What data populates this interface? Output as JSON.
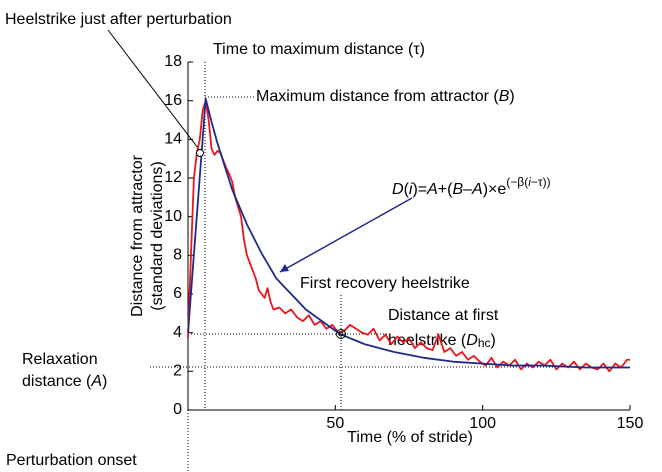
{
  "chart_data": {
    "type": "line",
    "x_label": "Time (% of stride)",
    "y_label": [
      "Distance from attractor",
      "(standard deviations)"
    ],
    "xlim": [
      0,
      150
    ],
    "ylim": [
      0,
      18
    ],
    "xticks": [
      50,
      100,
      150
    ],
    "yticks": [
      0,
      2,
      4,
      6,
      8,
      10,
      12,
      14,
      16,
      18
    ],
    "series": [
      {
        "color": "#e8161b",
        "x": [
          0,
          1,
          2,
          3,
          4,
          5,
          6,
          7,
          8,
          9,
          10,
          11,
          12,
          13,
          14,
          15,
          16,
          17,
          18,
          19,
          20,
          21,
          22,
          23,
          24,
          25,
          26,
          27,
          28,
          29,
          31,
          33,
          35,
          37,
          39,
          41,
          43,
          45,
          47,
          49,
          51,
          53,
          55,
          57,
          59,
          61,
          63,
          65,
          67,
          69,
          71,
          73,
          75,
          77,
          79,
          81,
          83,
          85,
          87,
          89,
          91,
          93,
          95,
          97,
          99,
          101,
          103,
          105,
          107,
          109,
          111,
          113,
          115,
          117,
          119,
          121,
          123,
          125,
          127,
          129,
          131,
          133,
          135,
          137,
          139,
          141,
          143,
          145,
          147,
          149,
          150
        ],
        "values": [
          3.7,
          8,
          12,
          13.3,
          14,
          15.5,
          16,
          15,
          13.5,
          13.2,
          13.4,
          13.3,
          12.9,
          12.5,
          12.2,
          11.8,
          11,
          10.5,
          10,
          8.8,
          8,
          7.6,
          7.2,
          6.8,
          6.2,
          6.0,
          5.8,
          6.3,
          5.6,
          5.2,
          5.3,
          5.0,
          5.2,
          4.8,
          4.6,
          4.9,
          4.4,
          4.6,
          4.2,
          4.4,
          4.0,
          4.1,
          4.4,
          4.2,
          4.0,
          3.9,
          4.2,
          3.6,
          3.9,
          3.4,
          3.8,
          3.5,
          3.7,
          3.2,
          3.5,
          3.2,
          3.1,
          3.9,
          3.0,
          3.2,
          2.8,
          3.0,
          2.6,
          2.8,
          2.5,
          2.3,
          2.7,
          2.2,
          2.5,
          2.3,
          2.6,
          2.1,
          2.4,
          2.2,
          2.5,
          2.3,
          2.6,
          2.1,
          2.4,
          2.2,
          2.5,
          2.1,
          2.4,
          2.2,
          2.1,
          2.4,
          2.0,
          2.4,
          2.2,
          2.6,
          2.6
        ]
      },
      {
        "color": "#1f2a8c",
        "x": [
          0,
          6,
          8,
          10,
          15,
          20,
          25,
          30,
          40,
          50,
          52,
          60,
          70,
          80,
          90,
          100,
          110,
          120,
          135,
          150
        ],
        "values": [
          4.0,
          16.1,
          14.9,
          13.8,
          11.4,
          9.6,
          8.1,
          6.8,
          5.2,
          4.1,
          3.9,
          3.4,
          3.0,
          2.7,
          2.5,
          2.4,
          2.3,
          2.3,
          2.2,
          2.2
        ]
      }
    ],
    "annotations": {
      "heelstrike": "Heelstrike just after perturbation",
      "tau": "Time to maximum distance (τ)",
      "max": [
        "Maximum distance from attractor (",
        "B",
        ")"
      ],
      "equation": [
        "D",
        "(",
        "i",
        ")=",
        "A",
        "+(",
        "B",
        "–",
        "A",
        ")×e",
        "(−β(",
        "i",
        "−τ))"
      ],
      "recovery": "First recovery heelstrike",
      "dist_first": [
        "Distance at first",
        "heelstrike (",
        "D",
        "hc",
        ")"
      ],
      "relax": [
        "Relaxation",
        "distance (",
        "A",
        ")"
      ],
      "onset": "Perturbation onset"
    }
  }
}
